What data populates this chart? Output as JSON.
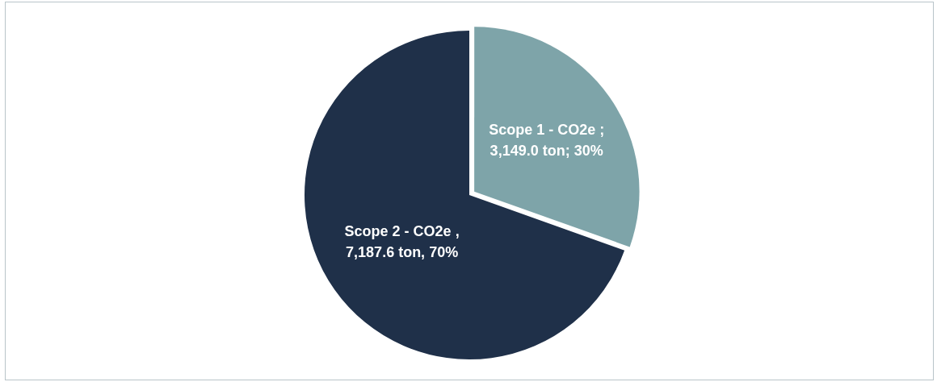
{
  "chart_data": {
    "type": "pie",
    "categories": [
      "Scope 1 - CO2e",
      "Scope 2 - CO2e"
    ],
    "values": [
      3149.0,
      7187.6
    ],
    "colors": [
      "#7ea4a9",
      "#1f3049"
    ],
    "value_labels": [
      ";\n3,149.0 ton; 30%",
      ",\n7,187.6 ton, 70%"
    ],
    "legend": false
  }
}
